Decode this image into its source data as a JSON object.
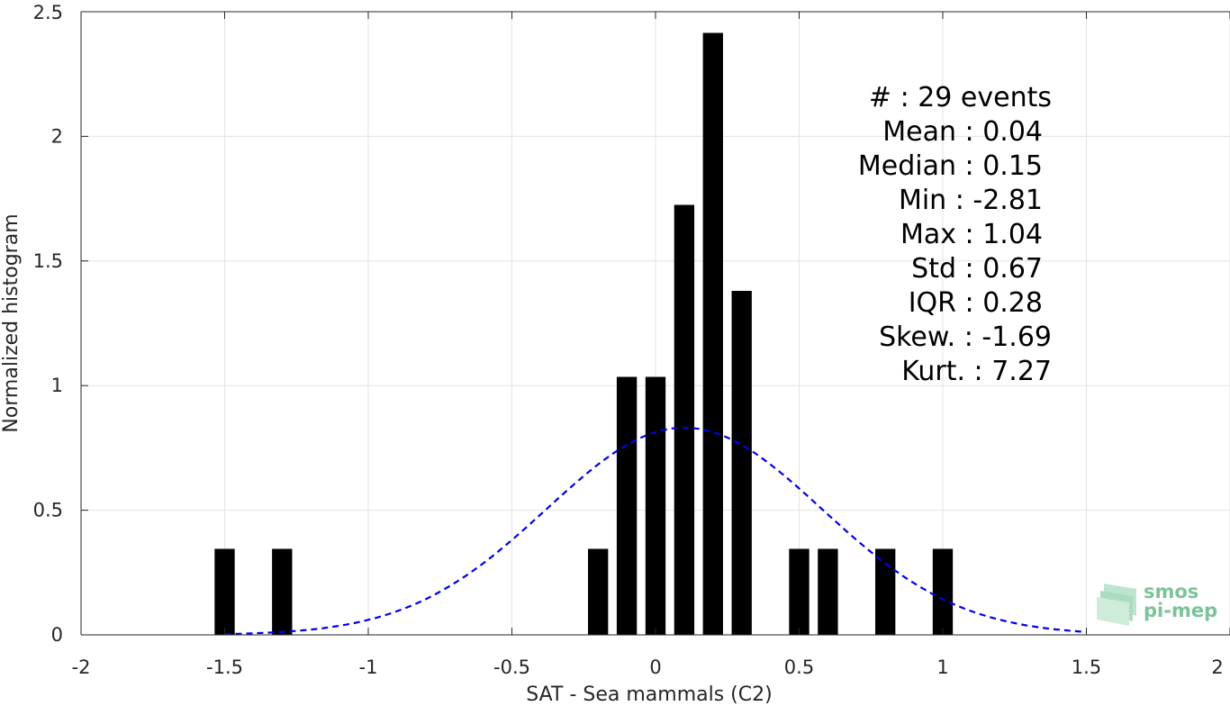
{
  "chart_data": {
    "type": "bar",
    "xlabel": "SAT - Sea mammals (C2)",
    "ylabel": "Normalized histogram",
    "xlim": [
      -2,
      2
    ],
    "ylim": [
      0,
      2.5
    ],
    "x_ticks": [
      -2,
      -1.5,
      -1,
      -0.5,
      0,
      0.5,
      1,
      1.5,
      2
    ],
    "x_tick_labels": [
      "-2",
      "-1.5",
      "-1",
      "-0.5",
      "0",
      "0.5",
      "1",
      "1.5",
      "2"
    ],
    "y_ticks": [
      0,
      0.5,
      1,
      1.5,
      2,
      2.5
    ],
    "y_tick_labels": [
      "0",
      "0.5",
      "1",
      "1.5",
      "2",
      "2.5"
    ],
    "grid": true,
    "bar_width": 0.07,
    "bars": [
      {
        "x": -1.5,
        "y": 0.345
      },
      {
        "x": -1.3,
        "y": 0.345
      },
      {
        "x": -0.2,
        "y": 0.345
      },
      {
        "x": -0.1,
        "y": 1.035
      },
      {
        "x": 0.0,
        "y": 1.035
      },
      {
        "x": 0.1,
        "y": 1.725
      },
      {
        "x": 0.2,
        "y": 2.415
      },
      {
        "x": 0.3,
        "y": 1.38
      },
      {
        "x": 0.5,
        "y": 0.345
      },
      {
        "x": 0.6,
        "y": 0.345
      },
      {
        "x": 0.8,
        "y": 0.345
      },
      {
        "x": 1.0,
        "y": 0.345
      }
    ],
    "bar_color": "#000000",
    "fit_curve": {
      "style": "dashed",
      "color": "#0000ee",
      "x_range": [
        -1.5,
        1.5
      ],
      "mean": 0.1,
      "std": 0.48
    },
    "stats": [
      "#  : 29 events",
      "Mean : 0.04",
      "Median : 0.15",
      "Min : -2.81",
      "Max : 1.04",
      "Std : 0.67",
      "IQR : 0.28",
      "Skew. : -1.69",
      "Kurt. : 7.27"
    ]
  },
  "logo": {
    "line1": "smos",
    "line2": "pi-mep",
    "color": "#7cc39a"
  }
}
